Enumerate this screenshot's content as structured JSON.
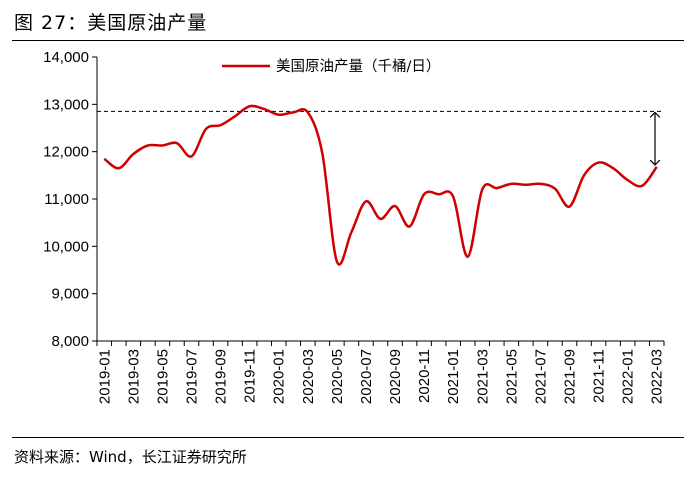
{
  "figure_title": "图 27：美国原油产量",
  "source": "资料来源：Wind，长江证券研究所",
  "colors": {
    "series": "#d00000",
    "axis": "#000000",
    "reference": "#000000"
  },
  "chart_data": {
    "type": "line",
    "title": "",
    "xlabel": "",
    "ylabel": "",
    "ylim": [
      8000,
      14000
    ],
    "y_ticks": [
      "14,000",
      "13,000",
      "12,000",
      "11,000",
      "10,000",
      "9,000",
      "8,000"
    ],
    "x_ticks": [
      "2019-01",
      "2019-03",
      "2019-05",
      "2019-07",
      "2019-09",
      "2019-11",
      "2020-01",
      "2020-03",
      "2020-05",
      "2020-07",
      "2020-09",
      "2020-11",
      "2021-01",
      "2021-03",
      "2021-05",
      "2021-07",
      "2021-09",
      "2021-11",
      "2022-01",
      "2022-03"
    ],
    "legend": {
      "position": "top-center",
      "entries": [
        "美国原油产量（千桶/日）"
      ]
    },
    "grid": false,
    "reference_line": {
      "y": 12850,
      "style": "dashed"
    },
    "annotation": {
      "type": "double-arrow",
      "from": 12850,
      "to": 11700,
      "at_x": "2022-03"
    },
    "series": [
      {
        "name": "美国原油产量（千桶/日）",
        "x": [
          "2019-01",
          "2019-02",
          "2019-03",
          "2019-04",
          "2019-05",
          "2019-06",
          "2019-07",
          "2019-08",
          "2019-09",
          "2019-10",
          "2019-11",
          "2019-12",
          "2020-01",
          "2020-02",
          "2020-03",
          "2020-04",
          "2020-05",
          "2020-06",
          "2020-07",
          "2020-08",
          "2020-09",
          "2020-10",
          "2020-11",
          "2020-12",
          "2021-01",
          "2021-02",
          "2021-03",
          "2021-04",
          "2021-05",
          "2021-06",
          "2021-07",
          "2021-08",
          "2021-09",
          "2021-10",
          "2021-11",
          "2021-12",
          "2022-01",
          "2022-02",
          "2022-03"
        ],
        "values": [
          11850,
          11650,
          11950,
          12130,
          12130,
          12180,
          11900,
          12480,
          12560,
          12750,
          12960,
          12900,
          12780,
          12830,
          12830,
          11960,
          9680,
          10300,
          10950,
          10580,
          10850,
          10420,
          11100,
          11100,
          11050,
          9780,
          11200,
          11230,
          11320,
          11300,
          11320,
          11220,
          10840,
          11500,
          11770,
          11650,
          11400,
          11280,
          11680
        ]
      }
    ]
  }
}
